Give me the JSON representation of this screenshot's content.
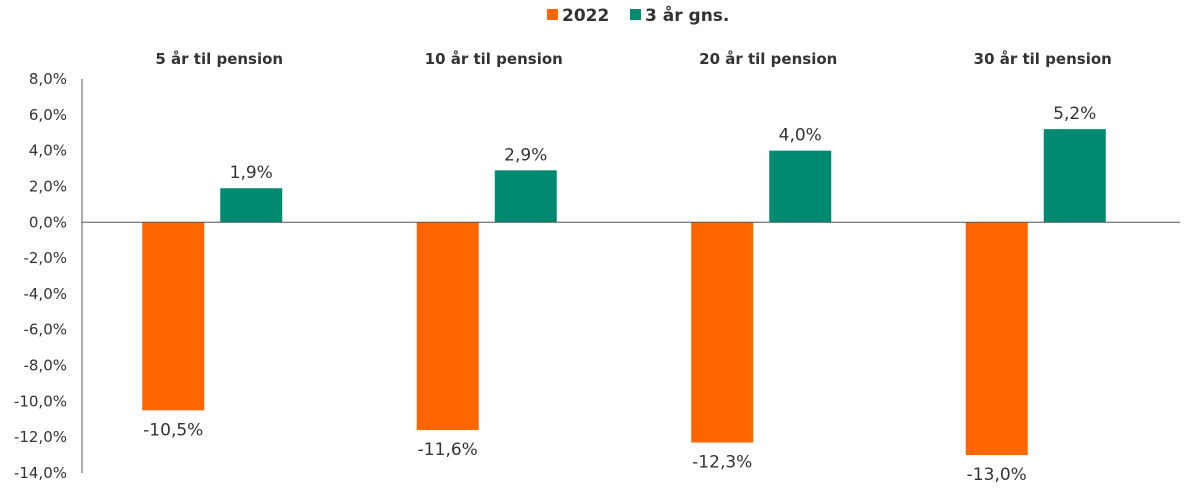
{
  "chart_data": {
    "type": "bar",
    "categories": [
      "5 år til pension",
      "10 år til pension",
      "20 år til pension",
      "30 år til pension"
    ],
    "series": [
      {
        "name": "2022",
        "values": [
          -10.5,
          -11.6,
          -12.3,
          -13.0
        ],
        "color": "#FF6600",
        "labels": [
          "-10,5%",
          "-11,6%",
          "-12,3%",
          "-13,0%"
        ]
      },
      {
        "name": "3 år gns.",
        "values": [
          1.9,
          2.9,
          4.0,
          5.2
        ],
        "color": "#008A72",
        "labels": [
          "1,9%",
          "2,9%",
          "4,0%",
          "5,2%"
        ]
      }
    ],
    "ylim": [
      -14,
      8
    ],
    "yticks": [
      8,
      6,
      4,
      2,
      0,
      -2,
      -4,
      -6,
      -8,
      -10,
      -12,
      -14
    ],
    "ytick_labels": [
      "8,0%",
      "6,0%",
      "4,0%",
      "2,0%",
      "0,0%",
      "-2,0%",
      "-4,0%",
      "-6,0%",
      "-8,0%",
      "-10,0%",
      "-12,0%",
      "-14,0%"
    ],
    "legend_position": "top-center",
    "category_label_position": "top",
    "grid": false
  }
}
